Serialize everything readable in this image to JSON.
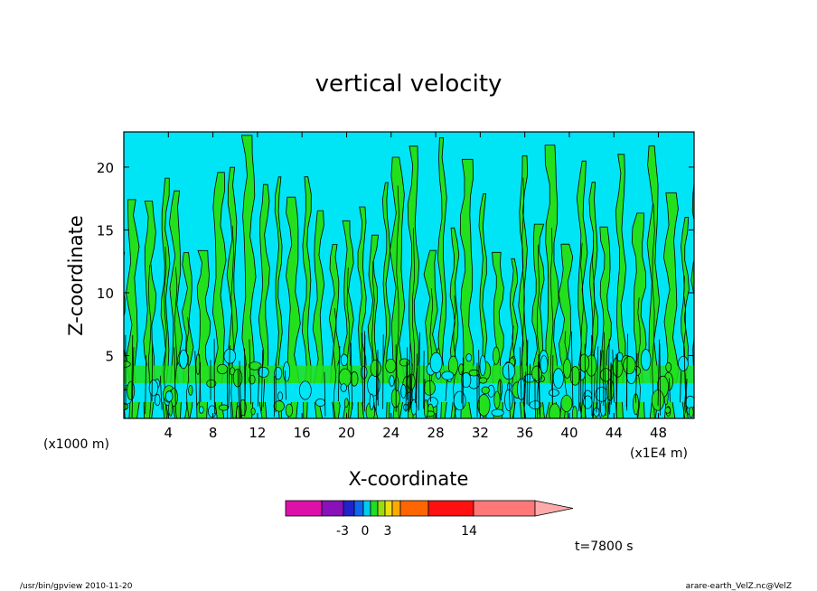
{
  "chart_data": {
    "type": "heatmap",
    "title": "vertical velocity",
    "xlabel": "X-coordinate",
    "ylabel": "Z-coordinate",
    "x_units_left": "(x1000 m)",
    "x_units_right": "(x1E4 m)",
    "xlim": [
      0,
      51.2
    ],
    "ylim": [
      0,
      22.8
    ],
    "x_ticks": [
      "4",
      "8",
      "12",
      "16",
      "20",
      "24",
      "28",
      "32",
      "36",
      "40",
      "44",
      "48"
    ],
    "y_ticks": [
      "5",
      "10",
      "15",
      "20"
    ],
    "x_tick_values": [
      4,
      8,
      12,
      16,
      20,
      24,
      28,
      32,
      36,
      40,
      44,
      48
    ],
    "y_tick_values": [
      5,
      10,
      15,
      20
    ],
    "grid": false,
    "pattern": "alternating vertical plumes of positive and negative vertical velocity; dense small-scale cells below z≈5 with a negative band near z≈1.5–2.5",
    "colorbar": {
      "labels": [
        "-3",
        "0",
        "3",
        "14"
      ],
      "label_values": [
        -3,
        0,
        3,
        14
      ],
      "colors": [
        "#dd11aa",
        "#8811bb",
        "#2222cc",
        "#1166ee",
        "#00ccee",
        "#22dd22",
        "#99dd11",
        "#eedd11",
        "#ffaa00",
        "#ff6600",
        "#ff1111",
        "#ff7777",
        "#ffaaaa"
      ]
    },
    "fill_colors": {
      "negative": "#00e5f5",
      "positive": "#22e01e"
    },
    "time_label": "t=7800 s"
  },
  "footer": {
    "left": "/usr/bin/gpview   2010-11-20",
    "right": "arare-earth_VelZ.nc@VelZ"
  }
}
